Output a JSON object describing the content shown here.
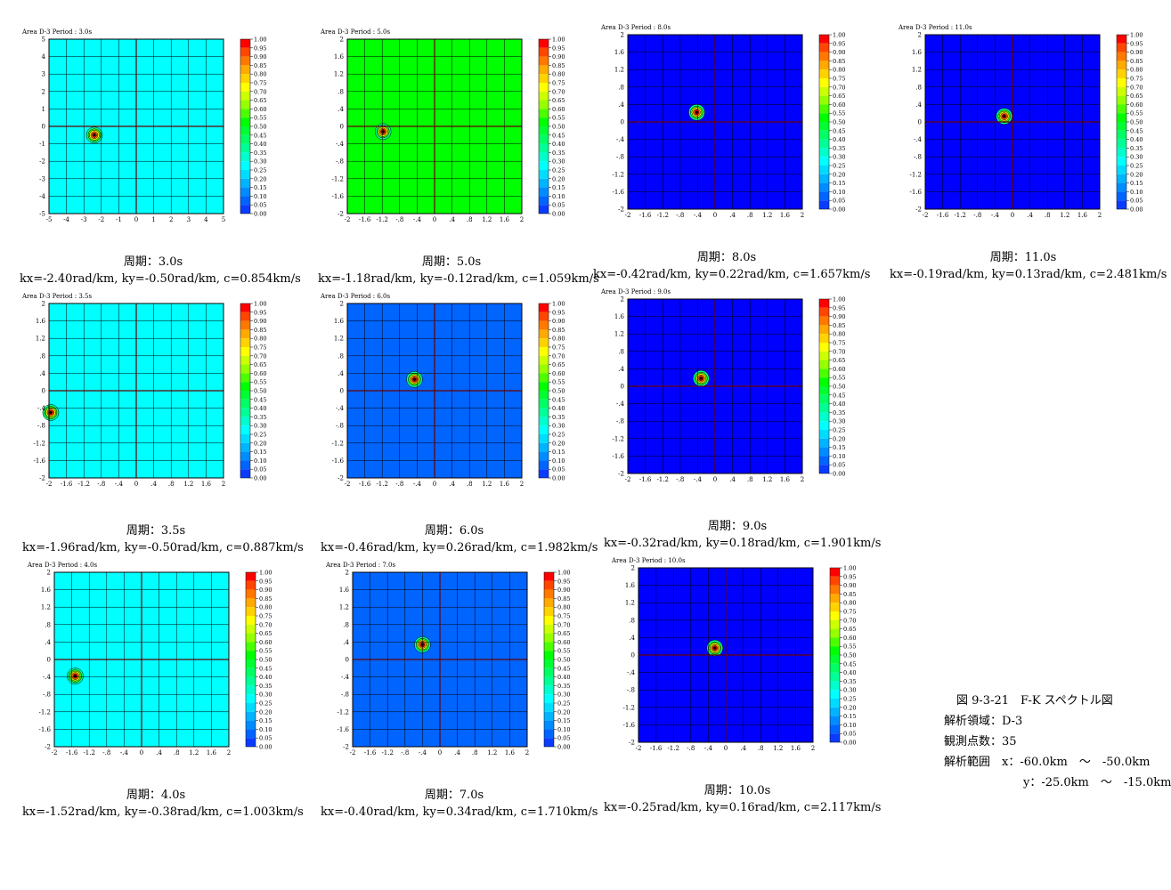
{
  "palette": [
    "#0000ff",
    "#0a3cff",
    "#0064ff",
    "#008cff",
    "#00b4ff",
    "#00dcff",
    "#00ffff",
    "#00ffcc",
    "#00ff96",
    "#00ff64",
    "#00ff32",
    "#00ff00",
    "#4cff00",
    "#96ff00",
    "#ccff00",
    "#ffff00",
    "#ffd200",
    "#ffaa00",
    "#ff7800",
    "#ff4600",
    "#ff0000"
  ],
  "colorbar_labels": [
    "1.00",
    "0.95",
    "0.90",
    "0.85",
    "0.80",
    "0.75",
    "0.70",
    "0.65",
    "0.60",
    "0.55",
    "0.50",
    "0.45",
    "0.40",
    "0.35",
    "0.30",
    "0.25",
    "0.20",
    "0.15",
    "0.10",
    "0.05",
    "0.00"
  ],
  "chart_data": [
    {
      "type": "heatmap",
      "id": "p30",
      "title": "Area D-3   Period : 3.0s",
      "period_label": "周期：3.0s",
      "params": "kx=-2.40rad/km, ky=-0.50rad/km, c=0.854km/s",
      "xticks": [
        "-5",
        "-4",
        "-3",
        "-2",
        "-1",
        "0",
        "1",
        "2",
        "3",
        "4",
        "5"
      ],
      "yticks": [
        "5",
        "4",
        "3",
        "2",
        "1",
        "0",
        "-1",
        "-2",
        "-3",
        "-4",
        "-5"
      ],
      "xlim": [
        -5,
        5
      ],
      "ylim": [
        -5,
        5
      ],
      "background_color": "#00ffff",
      "peak": {
        "kx": -2.4,
        "ky": -0.5
      }
    },
    {
      "type": "heatmap",
      "id": "p50",
      "title": "Area D-3   Period : 5.0s",
      "period_label": "周期：5.0s",
      "params": "kx=-1.18rad/km, ky=-0.12rad/km, c=1.059km/s",
      "xticks": [
        "-2",
        "-1.6",
        "-1.2",
        "-.8",
        "-.4",
        "0",
        ".4",
        ".8",
        "1.2",
        "1.6",
        "2"
      ],
      "yticks": [
        "2",
        "1.6",
        "1.2",
        ".8",
        ".4",
        "0",
        "-.4",
        "-.8",
        "-1.2",
        "-1.6",
        "-2"
      ],
      "xlim": [
        -2,
        2
      ],
      "ylim": [
        -2,
        2
      ],
      "background_color": "#00ff00",
      "peak": {
        "kx": -1.18,
        "ky": -0.12
      }
    },
    {
      "type": "heatmap",
      "id": "p80",
      "title": "Area D-3   Period : 8.0s",
      "period_label": "周期：8.0s",
      "params": "kx=-0.42rad/km, ky=0.22rad/km, c=1.657km/s",
      "xticks": [
        "-2",
        "-1.6",
        "-1.2",
        "-.8",
        "-.4",
        "0",
        ".4",
        ".8",
        "1.2",
        "1.6",
        "2"
      ],
      "yticks": [
        "2",
        "1.6",
        "1.2",
        ".8",
        ".4",
        "0",
        "-.4",
        "-.8",
        "-1.2",
        "-1.6",
        "-2"
      ],
      "xlim": [
        -2,
        2
      ],
      "ylim": [
        -2,
        2
      ],
      "background_color": "#0000ff",
      "peak": {
        "kx": -0.42,
        "ky": 0.22
      }
    },
    {
      "type": "heatmap",
      "id": "p110",
      "title": "Area D-3   Period : 11.0s",
      "period_label": "周期：11.0s",
      "params": "kx=-0.19rad/km, ky=0.13rad/km, c=2.481km/s",
      "xticks": [
        "-2",
        "-1.6",
        "-1.2",
        "-.8",
        "-.4",
        "0",
        ".4",
        ".8",
        "1.2",
        "1.6",
        "2"
      ],
      "yticks": [
        "2",
        "1.6",
        "1.2",
        ".8",
        ".4",
        "0",
        "-.4",
        "-.8",
        "-1.2",
        "-1.6",
        "-2"
      ],
      "xlim": [
        -2,
        2
      ],
      "ylim": [
        -2,
        2
      ],
      "background_color": "#0000ff",
      "peak": {
        "kx": -0.19,
        "ky": 0.13
      }
    },
    {
      "type": "heatmap",
      "id": "p35",
      "title": "Area D-3   Period : 3.5s",
      "period_label": "周期：3.5s",
      "params": "kx=-1.96rad/km, ky=-0.50rad/km, c=0.887km/s",
      "xticks": [
        "-2",
        "-1.6",
        "-1.2",
        "-.8",
        "-.4",
        "0",
        ".4",
        ".8",
        "1.2",
        "1.6",
        "2"
      ],
      "yticks": [
        "2",
        "1.6",
        "1.2",
        ".8",
        ".4",
        "0",
        "-.4",
        "-.8",
        "-1.2",
        "-1.6",
        "-2"
      ],
      "xlim": [
        -2,
        2
      ],
      "ylim": [
        -2,
        2
      ],
      "background_color": "#00ffff",
      "peak": {
        "kx": -1.96,
        "ky": -0.5
      }
    },
    {
      "type": "heatmap",
      "id": "p60",
      "title": "Area D-3   Period : 6.0s",
      "period_label": "周期：6.0s",
      "params": "kx=-0.46rad/km, ky=0.26rad/km, c=1.982km/s",
      "xticks": [
        "-2",
        "-1.6",
        "-1.2",
        "-.8",
        "-.4",
        "0",
        ".4",
        ".8",
        "1.2",
        "1.6",
        "2"
      ],
      "yticks": [
        "2",
        "1.6",
        "1.2",
        ".8",
        ".4",
        "0",
        "-.4",
        "-.8",
        "-1.2",
        "-1.6",
        "-2"
      ],
      "xlim": [
        -2,
        2
      ],
      "ylim": [
        -2,
        2
      ],
      "background_color": "#0064ff",
      "peak": {
        "kx": -0.46,
        "ky": 0.26
      }
    },
    {
      "type": "heatmap",
      "id": "p90",
      "title": "Area D-3   Period : 9.0s",
      "period_label": "周期：9.0s",
      "params": "kx=-0.32rad/km, ky=0.18rad/km, c=1.901km/s",
      "xticks": [
        "-2",
        "-1.6",
        "-1.2",
        "-.8",
        "-.4",
        "0",
        ".4",
        ".8",
        "1.2",
        "1.6",
        "2"
      ],
      "yticks": [
        "2",
        "1.6",
        "1.2",
        ".8",
        ".4",
        "0",
        "-.4",
        "-.8",
        "-1.2",
        "-1.6",
        "-2"
      ],
      "xlim": [
        -2,
        2
      ],
      "ylim": [
        -2,
        2
      ],
      "background_color": "#0000ff",
      "peak": {
        "kx": -0.32,
        "ky": 0.18
      }
    },
    {
      "type": "heatmap",
      "id": "p40",
      "title": "Area D-3   Period : 4.0s",
      "period_label": "周期：4.0s",
      "params": "kx=-1.52rad/km, ky=-0.38rad/km, c=1.003km/s",
      "xticks": [
        "-2",
        "-1.6",
        "-1.2",
        "-.8",
        "-.4",
        "0",
        ".4",
        ".8",
        "1.2",
        "1.6",
        "2"
      ],
      "yticks": [
        "2",
        "1.6",
        "1.2",
        ".8",
        ".4",
        "0",
        "-.4",
        "-.8",
        "-1.2",
        "-1.6",
        "-2"
      ],
      "xlim": [
        -2,
        2
      ],
      "ylim": [
        -2,
        2
      ],
      "background_color": "#00ffff",
      "peak": {
        "kx": -1.52,
        "ky": -0.38
      }
    },
    {
      "type": "heatmap",
      "id": "p70",
      "title": "Area D-3   Period : 7.0s",
      "period_label": "周期：7.0s",
      "params": "kx=-0.40rad/km, ky=0.34rad/km, c=1.710km/s",
      "xticks": [
        "-2",
        "-1.6",
        "-1.2",
        "-.8",
        "-.4",
        "0",
        ".4",
        ".8",
        "1.2",
        "1.6",
        "2"
      ],
      "yticks": [
        "2",
        "1.6",
        "1.2",
        ".8",
        ".4",
        "0",
        "-.4",
        "-.8",
        "-1.2",
        "-1.6",
        "-2"
      ],
      "xlim": [
        -2,
        2
      ],
      "ylim": [
        -2,
        2
      ],
      "background_color": "#0064ff",
      "peak": {
        "kx": -0.4,
        "ky": 0.34
      }
    },
    {
      "type": "heatmap",
      "id": "p100",
      "title": "Area D-3   Period : 10.0s",
      "period_label": "周期：10.0s",
      "params": "kx=-0.25rad/km, ky=0.16rad/km, c=2.117km/s",
      "xticks": [
        "-2",
        "-1.6",
        "-1.2",
        "-.8",
        "-.4",
        "0",
        ".4",
        ".8",
        "1.2",
        "1.6",
        "2"
      ],
      "yticks": [
        "2",
        "1.6",
        "1.2",
        ".8",
        ".4",
        "0",
        "-.4",
        "-.8",
        "-1.2",
        "-1.6",
        "-2"
      ],
      "xlim": [
        -2,
        2
      ],
      "ylim": [
        -2,
        2
      ],
      "background_color": "#0000ff",
      "peak": {
        "kx": -0.25,
        "ky": 0.16
      }
    }
  ],
  "figure_caption": {
    "title": "図 9-3-21　F-K スペクトル図",
    "area": "解析領域：D-3",
    "stations": "観測点数：35",
    "range_x": "解析範囲　x：-60.0km　～　-50.0km",
    "range_y": "y：-25.0km　～　-15.0km"
  }
}
